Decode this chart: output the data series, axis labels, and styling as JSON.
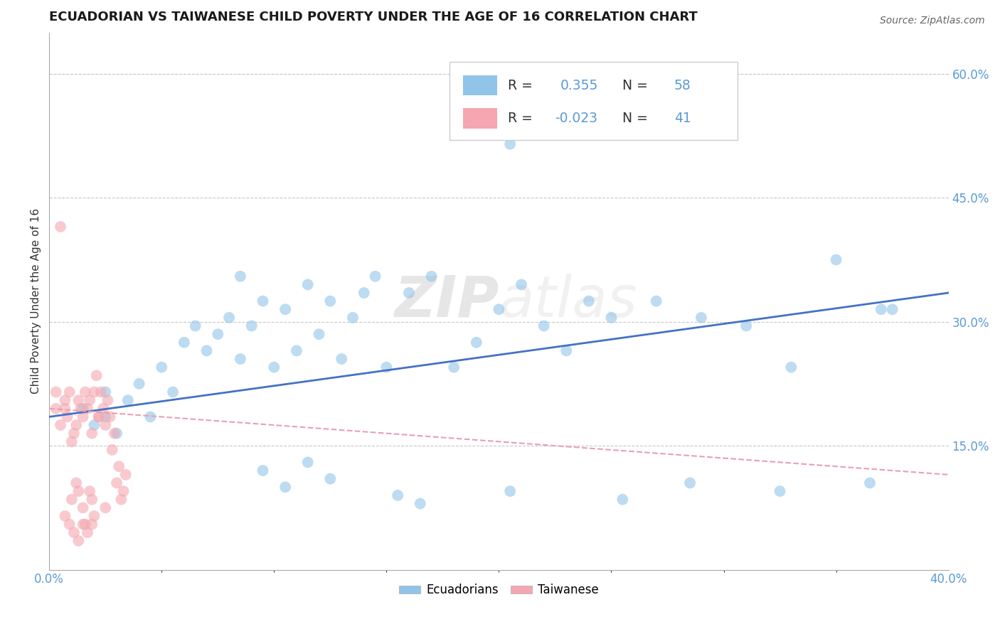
{
  "title": "ECUADORIAN VS TAIWANESE CHILD POVERTY UNDER THE AGE OF 16 CORRELATION CHART",
  "source": "Source: ZipAtlas.com",
  "ylabel": "Child Poverty Under the Age of 16",
  "xlim": [
    0.0,
    0.4
  ],
  "ylim": [
    0.0,
    0.65
  ],
  "xticklabels": [
    "0.0%",
    "40.0%"
  ],
  "xtick_positions": [
    0.0,
    0.4
  ],
  "yticks_right": [
    0.15,
    0.3,
    0.45,
    0.6
  ],
  "yticklabels_right": [
    "15.0%",
    "30.0%",
    "45.0%",
    "60.0%"
  ],
  "grid_color": "#c8c8c8",
  "background_color": "#ffffff",
  "blue_color": "#91c4e8",
  "pink_color": "#f4a7b0",
  "blue_line_color": "#4472c4",
  "pink_line_color": "#e8a0b0",
  "legend_R_blue": "0.355",
  "legend_N_blue": "58",
  "legend_R_pink": "-0.023",
  "legend_N_pink": "41",
  "watermark": "ZIPatlas",
  "blue_trend_x": [
    0.0,
    0.4
  ],
  "blue_trend_y": [
    0.185,
    0.335
  ],
  "pink_trend_x": [
    0.0,
    0.4
  ],
  "pink_trend_y": [
    0.195,
    0.115
  ],
  "blue_scatter_x": [
    0.015,
    0.02,
    0.025,
    0.025,
    0.03,
    0.035,
    0.04,
    0.045,
    0.05,
    0.055,
    0.06,
    0.065,
    0.07,
    0.075,
    0.08,
    0.085,
    0.085,
    0.09,
    0.095,
    0.1,
    0.105,
    0.11,
    0.115,
    0.12,
    0.125,
    0.13,
    0.135,
    0.14,
    0.145,
    0.15,
    0.16,
    0.17,
    0.18,
    0.19,
    0.2,
    0.21,
    0.22,
    0.23,
    0.24,
    0.25,
    0.27,
    0.29,
    0.31,
    0.33,
    0.35,
    0.37,
    0.095,
    0.105,
    0.115,
    0.125,
    0.155,
    0.165,
    0.205,
    0.255,
    0.285,
    0.325,
    0.365,
    0.375
  ],
  "blue_scatter_y": [
    0.195,
    0.175,
    0.215,
    0.185,
    0.165,
    0.205,
    0.225,
    0.185,
    0.245,
    0.215,
    0.275,
    0.295,
    0.265,
    0.285,
    0.305,
    0.255,
    0.355,
    0.295,
    0.325,
    0.245,
    0.315,
    0.265,
    0.345,
    0.285,
    0.325,
    0.255,
    0.305,
    0.335,
    0.355,
    0.245,
    0.335,
    0.355,
    0.245,
    0.275,
    0.315,
    0.345,
    0.295,
    0.265,
    0.325,
    0.305,
    0.325,
    0.305,
    0.295,
    0.245,
    0.375,
    0.315,
    0.12,
    0.1,
    0.13,
    0.11,
    0.09,
    0.08,
    0.095,
    0.085,
    0.105,
    0.095,
    0.105,
    0.315
  ],
  "pink_scatter_x": [
    0.003,
    0.005,
    0.007,
    0.008,
    0.009,
    0.01,
    0.011,
    0.012,
    0.013,
    0.014,
    0.015,
    0.016,
    0.017,
    0.018,
    0.019,
    0.02,
    0.021,
    0.022,
    0.023,
    0.024,
    0.025,
    0.026,
    0.027,
    0.028,
    0.029,
    0.03,
    0.031,
    0.032,
    0.033,
    0.034,
    0.007,
    0.01,
    0.012,
    0.015,
    0.018,
    0.02,
    0.022,
    0.025,
    0.013,
    0.016,
    0.019
  ],
  "pink_scatter_y": [
    0.195,
    0.415,
    0.205,
    0.185,
    0.215,
    0.155,
    0.165,
    0.175,
    0.205,
    0.195,
    0.185,
    0.215,
    0.195,
    0.205,
    0.165,
    0.215,
    0.235,
    0.185,
    0.215,
    0.195,
    0.175,
    0.205,
    0.185,
    0.145,
    0.165,
    0.105,
    0.125,
    0.085,
    0.095,
    0.115,
    0.195,
    0.085,
    0.105,
    0.075,
    0.095,
    0.065,
    0.185,
    0.075,
    0.095,
    0.055,
    0.085
  ],
  "extra_pink_y": [
    0.215,
    0.175,
    0.065,
    0.055,
    0.045,
    0.035,
    0.055,
    0.045,
    0.055
  ]
}
